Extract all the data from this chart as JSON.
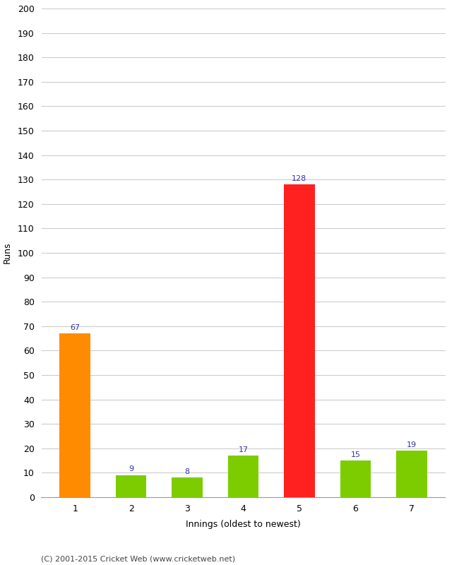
{
  "categories": [
    "1",
    "2",
    "3",
    "4",
    "5",
    "6",
    "7"
  ],
  "values": [
    67,
    9,
    8,
    17,
    128,
    15,
    19
  ],
  "bar_colors": [
    "#ff8c00",
    "#7dcc00",
    "#7dcc00",
    "#7dcc00",
    "#ff2020",
    "#7dcc00",
    "#7dcc00"
  ],
  "xlabel": "Innings (oldest to newest)",
  "ylabel": "Runs",
  "ylim": [
    0,
    200
  ],
  "yticks": [
    0,
    10,
    20,
    30,
    40,
    50,
    60,
    70,
    80,
    90,
    100,
    110,
    120,
    130,
    140,
    150,
    160,
    170,
    180,
    190,
    200
  ],
  "label_color": "#3333aa",
  "grid_color": "#cccccc",
  "background_color": "#ffffff",
  "footer_text": "(C) 2001-2015 Cricket Web (www.cricketweb.net)",
  "label_fontsize": 8,
  "axis_label_fontsize": 9,
  "tick_fontsize": 9,
  "footer_fontsize": 8,
  "bar_width": 0.55
}
